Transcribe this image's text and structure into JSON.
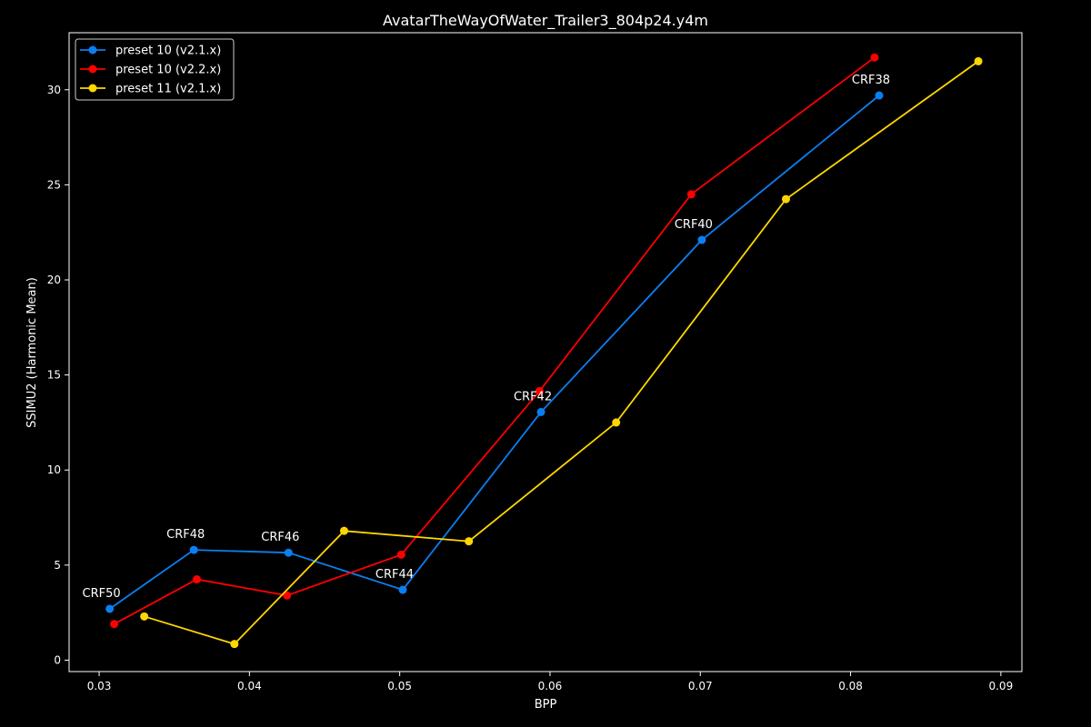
{
  "chart_data": {
    "type": "line",
    "title": "AvatarTheWayOfWater_Trailer3_804p24.y4m",
    "xlabel": "BPP",
    "ylabel": "SSIMU2 (Harmonic Mean)",
    "xlim": [
      0.028,
      0.0914
    ],
    "ylim": [
      -0.6,
      33.0
    ],
    "xticks": [
      0.03,
      0.04,
      0.05,
      0.06,
      0.07,
      0.08,
      0.09
    ],
    "xtick_labels": [
      "0.03",
      "0.04",
      "0.05",
      "0.06",
      "0.07",
      "0.08",
      "0.09"
    ],
    "yticks": [
      0,
      5,
      10,
      15,
      20,
      25,
      30
    ],
    "ytick_labels": [
      "0",
      "5",
      "10",
      "15",
      "20",
      "25",
      "30"
    ],
    "grid": false,
    "legend_position": "top-left",
    "series": [
      {
        "name": "preset 10 (v2.1.x)",
        "color": "#0a7ff0",
        "x": [
          0.0307,
          0.0363,
          0.0426,
          0.0502,
          0.0594,
          0.0701,
          0.0819
        ],
        "y": [
          2.7,
          5.8,
          5.65,
          3.7,
          13.05,
          22.1,
          29.7
        ]
      },
      {
        "name": "preset 10 (v2.2.x)",
        "color": "#ff0000",
        "x": [
          0.031,
          0.0365,
          0.0425,
          0.0501,
          0.0593,
          0.0694,
          0.0816
        ],
        "y": [
          1.9,
          4.25,
          3.4,
          5.55,
          14.15,
          24.5,
          31.7
        ]
      },
      {
        "name": "preset 11 (v2.1.x)",
        "color": "#ffd700",
        "x": [
          0.033,
          0.039,
          0.0463,
          0.0546,
          0.0644,
          0.0757,
          0.0885
        ],
        "y": [
          2.3,
          0.85,
          6.8,
          6.25,
          12.5,
          24.25,
          31.5
        ]
      }
    ],
    "annotations": [
      {
        "text": "CRF50",
        "x": 0.0307,
        "y": 2.7
      },
      {
        "text": "CRF48",
        "x": 0.0363,
        "y": 5.8
      },
      {
        "text": "CRF46",
        "x": 0.0426,
        "y": 5.65
      },
      {
        "text": "CRF44",
        "x": 0.0502,
        "y": 3.7
      },
      {
        "text": "CRF42",
        "x": 0.0594,
        "y": 13.05
      },
      {
        "text": "CRF40",
        "x": 0.0701,
        "y": 22.1
      },
      {
        "text": "CRF38",
        "x": 0.0819,
        "y": 29.7
      }
    ],
    "colors": {
      "background": "#000000",
      "axes": "#ffffff",
      "text": "#ffffff",
      "legend_border": "#cccccc"
    }
  }
}
